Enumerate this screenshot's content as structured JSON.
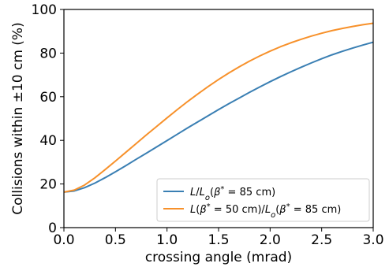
{
  "chart_data": {
    "type": "line",
    "xlabel": "crossing angle (mrad)",
    "ylabel": "Collisions within ±10 cm (%)",
    "xlim": [
      0.0,
      3.0
    ],
    "ylim": [
      0,
      100
    ],
    "xticks": [
      "0.0",
      "0.5",
      "1.0",
      "1.5",
      "2.0",
      "2.5",
      "3.0"
    ],
    "yticks": [
      "0",
      "20",
      "40",
      "60",
      "80",
      "100"
    ],
    "grid": false,
    "legend_position": "lower-right",
    "x": [
      0.0,
      0.1,
      0.2,
      0.3,
      0.4,
      0.5,
      0.6,
      0.7,
      0.8,
      0.9,
      1.0,
      1.1,
      1.2,
      1.3,
      1.4,
      1.5,
      1.6,
      1.7,
      1.8,
      1.9,
      2.0,
      2.1,
      2.2,
      2.3,
      2.4,
      2.5,
      2.6,
      2.7,
      2.8,
      2.9,
      3.0
    ],
    "series": [
      {
        "name": "L/L_o(β* = 85 cm)",
        "color": "#3a7fb3",
        "values": [
          16.3,
          16.8,
          18.3,
          20.4,
          22.9,
          25.6,
          28.4,
          31.3,
          34.1,
          37.0,
          39.9,
          42.8,
          45.7,
          48.5,
          51.3,
          54.1,
          56.8,
          59.4,
          62.0,
          64.5,
          66.9,
          69.2,
          71.4,
          73.5,
          75.5,
          77.4,
          79.2,
          80.8,
          82.3,
          83.7,
          85.0
        ]
      },
      {
        "name": "L(β* = 50 cm)/L_o(β* = 85 cm)",
        "color": "#f7912b",
        "values": [
          16.3,
          17.2,
          19.5,
          22.8,
          26.6,
          30.5,
          34.5,
          38.5,
          42.5,
          46.4,
          50.3,
          54.1,
          57.8,
          61.3,
          64.7,
          67.9,
          70.9,
          73.7,
          76.3,
          78.7,
          80.9,
          82.9,
          84.7,
          86.3,
          87.8,
          89.1,
          90.3,
          91.3,
          92.2,
          93.0,
          93.7
        ]
      }
    ]
  }
}
